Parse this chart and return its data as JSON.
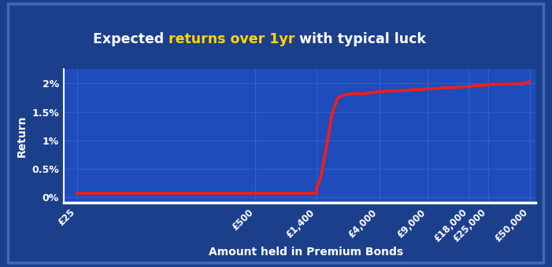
{
  "title_parts": [
    {
      "text": "Expected ",
      "color": "#FFFFFF",
      "bold": true
    },
    {
      "text": "returns over 1yr",
      "color": "#FFD700",
      "bold": true
    },
    {
      "text": " with typical luck",
      "color": "#FFFFFF",
      "bold": true
    }
  ],
  "xlabel": "Amount held in Premium Bonds",
  "ylabel": "Return",
  "x_tick_labels": [
    "£25",
    "£500",
    "£1,400",
    "£4,000",
    "£9,000",
    "£18,000",
    "£25,000",
    "£50,000"
  ],
  "x_tick_values": [
    25,
    500,
    1400,
    4000,
    9000,
    18000,
    25000,
    50000
  ],
  "y_tick_labels": [
    "0%",
    "0.5%",
    "1%",
    "1.5%",
    "2%"
  ],
  "y_tick_values": [
    0.0,
    0.005,
    0.01,
    0.015,
    0.02
  ],
  "ylim": [
    -0.001,
    0.0225
  ],
  "background_outer": "#1c3f8c",
  "background_inner": "#1e4cba",
  "grid_color": "#2e5fcc",
  "line_color": "#e82020",
  "axis_color": "#FFFFFF",
  "title_bg": "#0d1f5c",
  "x_data": [
    25,
    50,
    100,
    150,
    200,
    300,
    400,
    500,
    600,
    700,
    800,
    900,
    1000,
    1100,
    1200,
    1300,
    1399,
    1400,
    1450,
    1500,
    1600,
    1700,
    1800,
    1900,
    2000,
    2200,
    2500,
    3000,
    3500,
    4000,
    5000,
    6000,
    7000,
    8000,
    9000,
    10000,
    12000,
    14000,
    16000,
    18000,
    20000,
    22000,
    25000,
    30000,
    35000,
    40000,
    45000,
    50000
  ],
  "y_data": [
    0.00071,
    0.00071,
    0.00071,
    0.00071,
    0.00071,
    0.00071,
    0.00071,
    0.00071,
    0.00071,
    0.00071,
    0.00071,
    0.00071,
    0.00071,
    0.00071,
    0.00071,
    0.00071,
    0.00071,
    0.00179,
    0.0025,
    0.00357,
    0.00714,
    0.01071,
    0.01429,
    0.01607,
    0.0175,
    0.018,
    0.01821,
    0.01821,
    0.01839,
    0.01857,
    0.01875,
    0.01875,
    0.01893,
    0.01893,
    0.01911,
    0.01911,
    0.01929,
    0.01929,
    0.01946,
    0.01946,
    0.01964,
    0.01964,
    0.01982,
    0.01989,
    0.01993,
    0.01996,
    0.01998,
    0.0204
  ]
}
